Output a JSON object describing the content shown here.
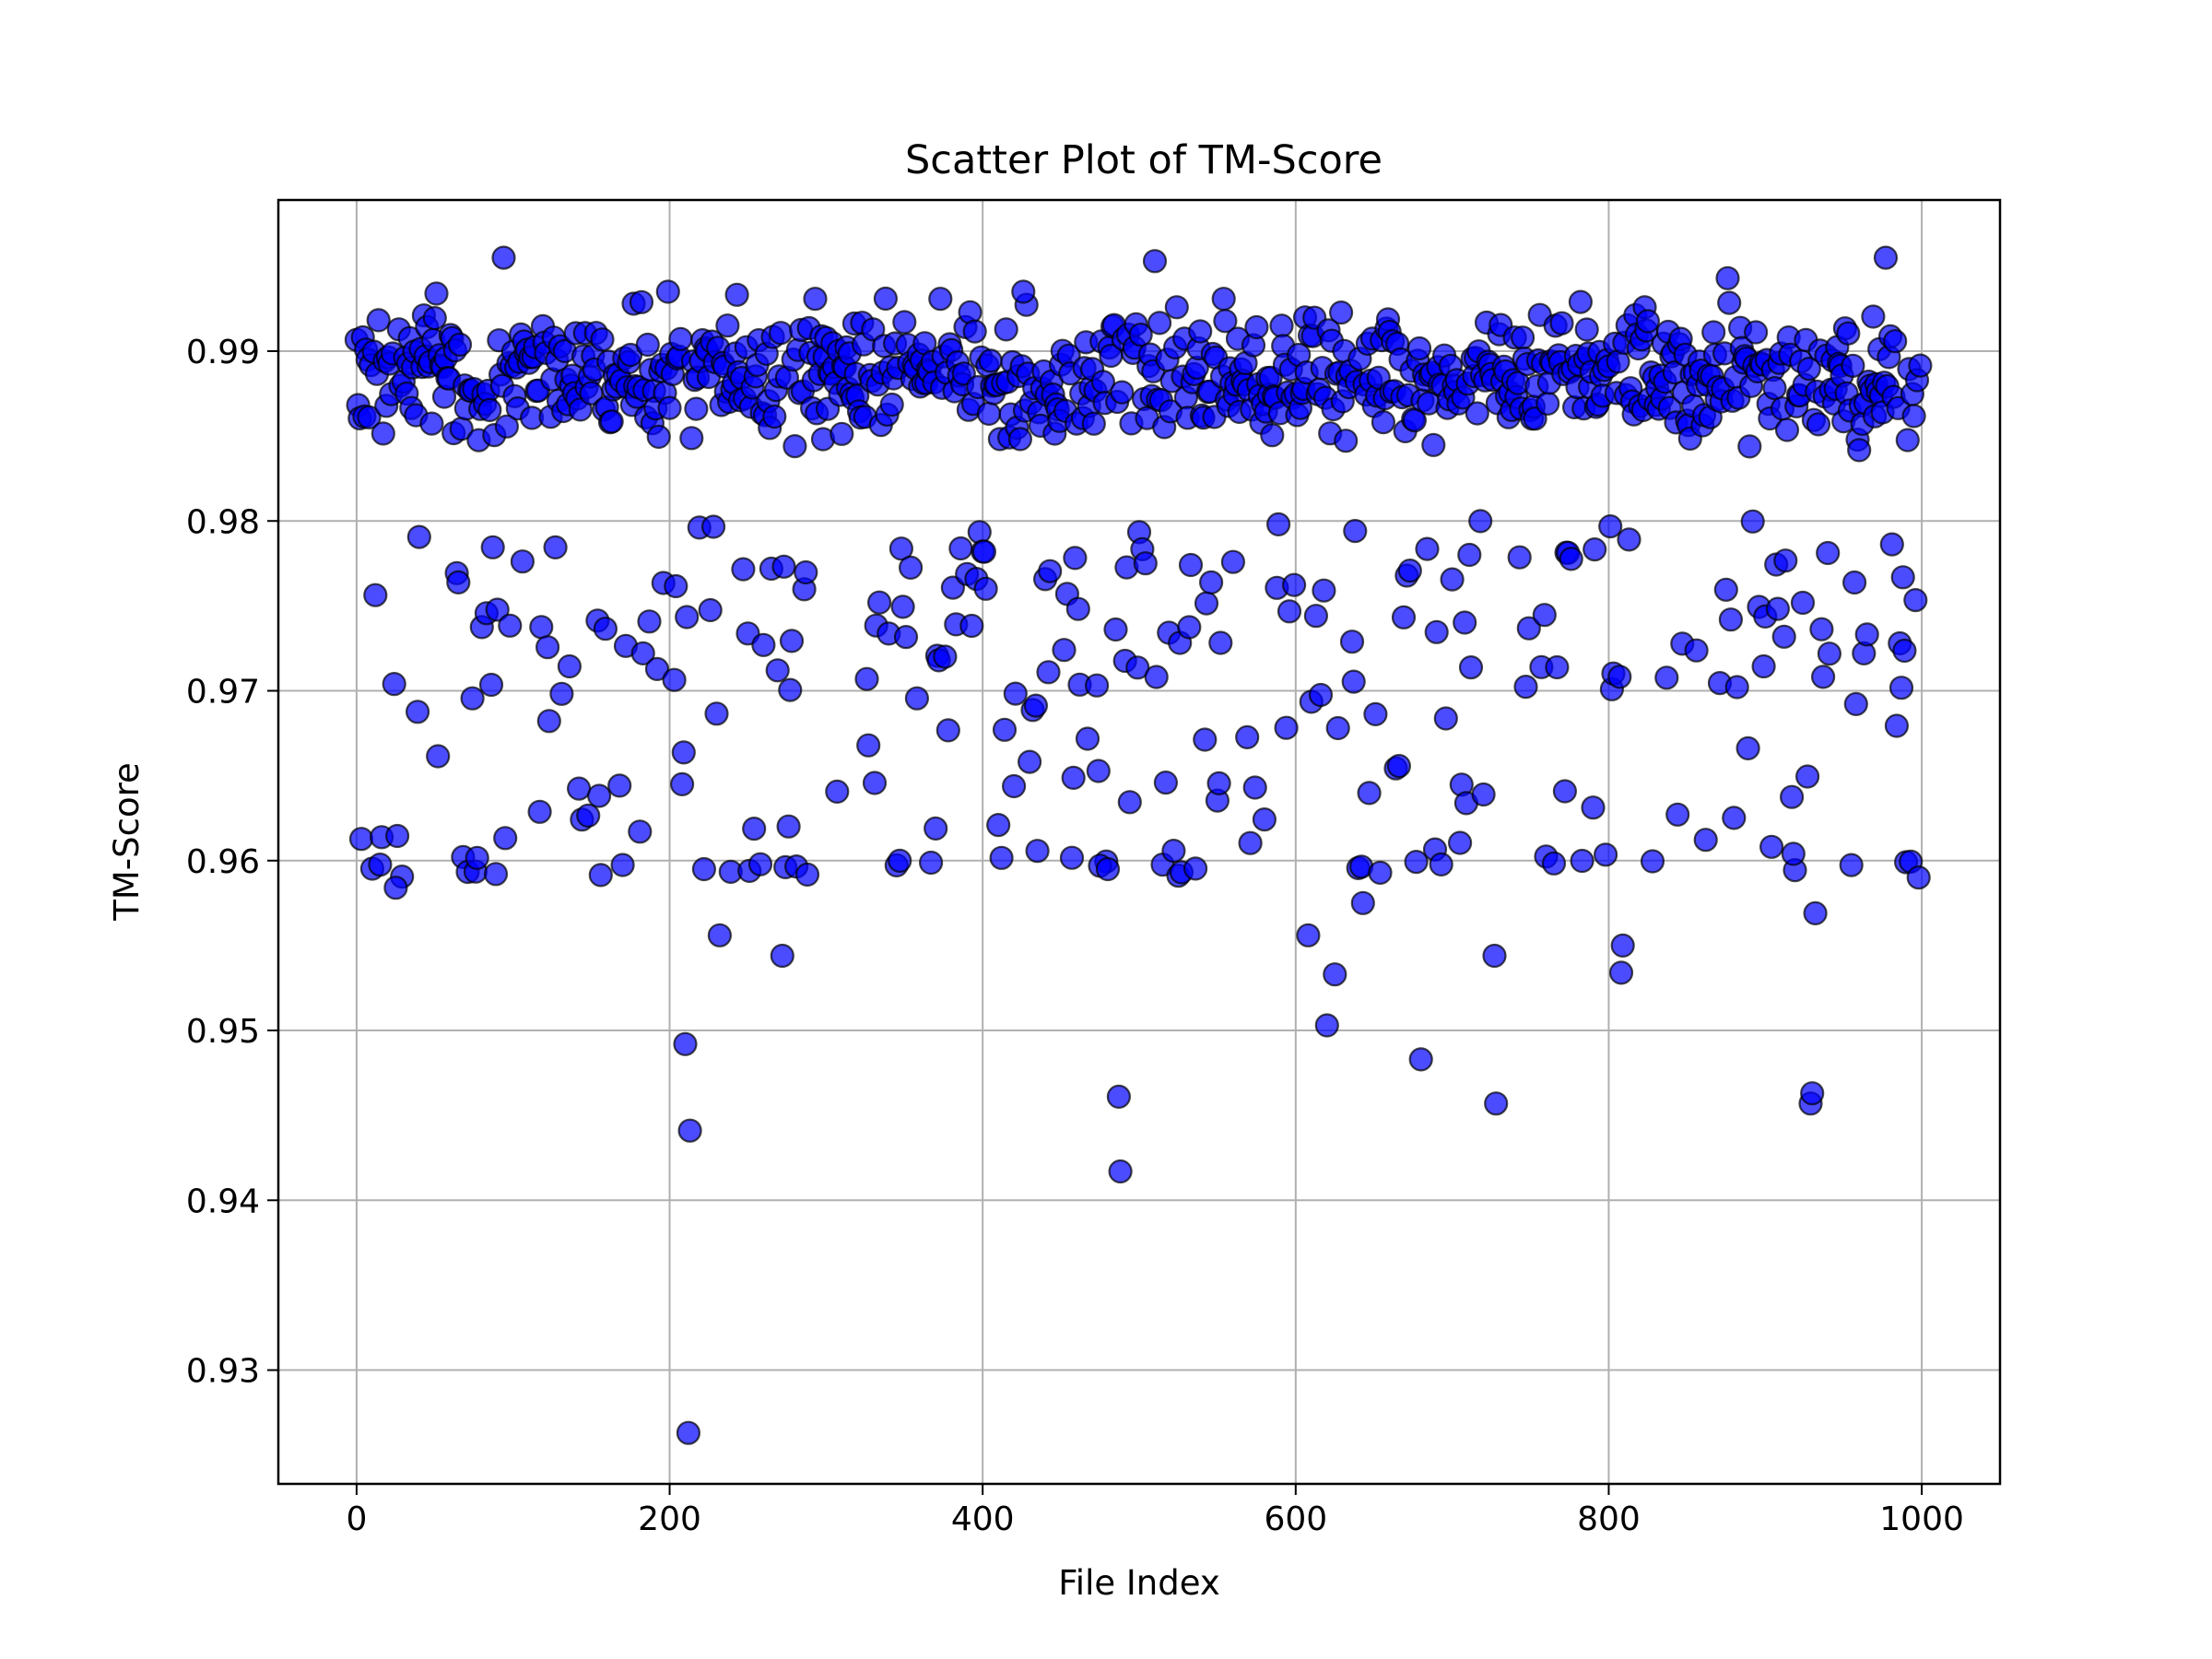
{
  "chart_data": {
    "type": "scatter",
    "title": "Scatter Plot of TM-Score",
    "xlabel": "File Index",
    "ylabel": "TM-Score",
    "xlim": [
      -50,
      1050
    ],
    "ylim": [
      0.9233,
      0.9989
    ],
    "xticks": [
      0,
      200,
      400,
      600,
      800,
      1000
    ],
    "xtick_labels": [
      "0",
      "200",
      "400",
      "600",
      "800",
      "1000"
    ],
    "yticks": [
      0.93,
      0.94,
      0.95,
      0.96,
      0.97,
      0.98,
      0.99
    ],
    "ytick_labels": [
      "0.93",
      "0.94",
      "0.95",
      "0.96",
      "0.97",
      "0.98",
      "0.99"
    ],
    "grid": true,
    "marker_color": "#0000ff",
    "marker_edge_color": "#000000",
    "marker_alpha": 0.7,
    "n_points": 1000,
    "notable_points": [
      {
        "x": 212,
        "y": 0.9263
      },
      {
        "x": 210,
        "y": 0.9492
      },
      {
        "x": 213,
        "y": 0.9441
      },
      {
        "x": 488,
        "y": 0.9417
      },
      {
        "x": 487,
        "y": 0.9461
      },
      {
        "x": 680,
        "y": 0.9483
      },
      {
        "x": 728,
        "y": 0.9457
      },
      {
        "x": 929,
        "y": 0.9457
      },
      {
        "x": 930,
        "y": 0.9463
      },
      {
        "x": 25,
        "y": 0.9584
      },
      {
        "x": 222,
        "y": 0.9595
      },
      {
        "x": 232,
        "y": 0.9556
      },
      {
        "x": 272,
        "y": 0.9544
      },
      {
        "x": 475,
        "y": 0.9597
      },
      {
        "x": 480,
        "y": 0.9595
      },
      {
        "x": 608,
        "y": 0.9556
      },
      {
        "x": 620,
        "y": 0.9503
      },
      {
        "x": 625,
        "y": 0.9533
      },
      {
        "x": 643,
        "y": 0.9575
      },
      {
        "x": 727,
        "y": 0.9544
      },
      {
        "x": 808,
        "y": 0.9534
      },
      {
        "x": 809,
        "y": 0.955
      },
      {
        "x": 918,
        "y": 0.9604
      },
      {
        "x": 932,
        "y": 0.9569
      },
      {
        "x": 94,
        "y": 0.9955
      },
      {
        "x": 510,
        "y": 0.9953
      },
      {
        "x": 876,
        "y": 0.9943
      },
      {
        "x": 977,
        "y": 0.9955
      },
      {
        "x": 426,
        "y": 0.9935
      }
    ],
    "distribution_bands": [
      {
        "range": [
          0.98,
          0.995
        ],
        "share": 0.72
      },
      {
        "range": [
          0.97,
          0.98
        ],
        "share": 0.17
      },
      {
        "range": [
          0.96,
          0.97
        ],
        "share": 0.08
      },
      {
        "range": [
          0.926,
          0.96
        ],
        "share": 0.03
      }
    ]
  }
}
